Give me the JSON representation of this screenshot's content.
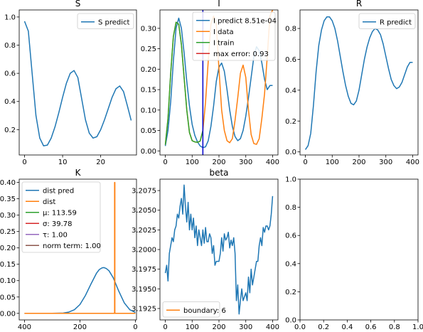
{
  "colors": {
    "blue": "#1f77b4",
    "orange": "#ff7f0e",
    "green": "#2ca02c",
    "red": "#d62728",
    "purple": "#9467bd",
    "brown": "#8c564b",
    "vline": "#0000cc"
  },
  "chart_data": [
    {
      "type": "line",
      "title": "S",
      "xlabel": "",
      "ylabel": "",
      "xlim": [
        -1.4,
        29.4
      ],
      "ylim": [
        0.02,
        1.05
      ],
      "xticks": [
        0,
        10,
        20
      ],
      "yticks": [
        0.2,
        0.4,
        0.6,
        0.8,
        1.0
      ],
      "xtick_labels": [
        "0",
        "10",
        "20"
      ],
      "ytick_labels": [
        "0.2",
        "0.4",
        "0.6",
        "0.8",
        "1.0"
      ],
      "legend_loc": "upper right",
      "series": [
        {
          "name": "S predict",
          "color": "blue",
          "x": [
            0,
            1,
            2,
            3,
            4,
            5,
            6,
            7,
            8,
            9,
            10,
            11,
            12,
            13,
            14,
            15,
            16,
            17,
            18,
            19,
            20,
            21,
            22,
            23,
            24,
            25,
            26,
            27,
            28
          ],
          "y": [
            0.97,
            0.9,
            0.6,
            0.3,
            0.14,
            0.085,
            0.09,
            0.14,
            0.22,
            0.32,
            0.43,
            0.53,
            0.6,
            0.62,
            0.57,
            0.42,
            0.27,
            0.175,
            0.14,
            0.15,
            0.2,
            0.27,
            0.35,
            0.43,
            0.49,
            0.51,
            0.47,
            0.37,
            0.265
          ]
        }
      ]
    },
    {
      "type": "line",
      "title": "I",
      "xlabel": "",
      "ylabel": "",
      "xlim": [
        -20,
        420
      ],
      "ylim": [
        -0.01,
        0.345
      ],
      "xticks": [
        0,
        100,
        200,
        300,
        400
      ],
      "yticks": [
        0.0,
        0.05,
        0.1,
        0.15,
        0.2,
        0.25,
        0.3
      ],
      "xtick_labels": [
        "0",
        "100",
        "200",
        "300",
        "400"
      ],
      "ytick_labels": [
        "0.00",
        "0.05",
        "0.10",
        "0.15",
        "0.20",
        "0.25",
        "0.30"
      ],
      "vline_x": 140,
      "legend_loc": "upper right",
      "series": [
        {
          "name": "I predict 8.51e-04",
          "color": "blue",
          "x": [
            0,
            10,
            20,
            30,
            40,
            50,
            60,
            70,
            80,
            90,
            100,
            110,
            120,
            130,
            140,
            150,
            160,
            170,
            180,
            190,
            200,
            210,
            220,
            230,
            240,
            250,
            260,
            270,
            280,
            290,
            300,
            310,
            320,
            330,
            340,
            350,
            360,
            370,
            380,
            390,
            400
          ],
          "y": [
            0.012,
            0.05,
            0.12,
            0.22,
            0.3,
            0.325,
            0.3,
            0.24,
            0.17,
            0.11,
            0.065,
            0.038,
            0.022,
            0.012,
            0.008,
            0.01,
            0.025,
            0.06,
            0.11,
            0.17,
            0.205,
            0.215,
            0.195,
            0.15,
            0.1,
            0.06,
            0.035,
            0.025,
            0.03,
            0.05,
            0.085,
            0.13,
            0.18,
            0.23,
            0.255,
            0.245,
            0.215,
            0.175,
            0.15,
            0.16,
            0.16
          ]
        },
        {
          "name": "I data",
          "color": "orange",
          "x": [
            0,
            10,
            20,
            30,
            40,
            50,
            60,
            70,
            80,
            90,
            100,
            110,
            120,
            130,
            140,
            150,
            160,
            170,
            180,
            190,
            200,
            210,
            220,
            230,
            240,
            250,
            260,
            270,
            280,
            290,
            300,
            310,
            320,
            330,
            340,
            350,
            360,
            370,
            380,
            390,
            400
          ],
          "y": [
            0.015,
            0.08,
            0.19,
            0.28,
            0.315,
            0.31,
            0.26,
            0.18,
            0.1,
            0.045,
            0.025,
            0.022,
            0.021,
            0.024,
            0.05,
            0.12,
            0.22,
            0.31,
            0.33,
            0.31,
            0.2,
            0.1,
            0.05,
            0.025,
            0.02,
            0.03,
            0.075,
            0.13,
            0.19,
            0.21,
            0.18,
            0.1,
            0.04,
            0.018,
            0.016,
            0.03,
            0.08,
            0.14,
            0.23,
            0.33,
            0.345
          ]
        },
        {
          "name": "I train",
          "color": "green",
          "x": [
            0,
            10,
            20,
            30,
            40,
            50,
            60,
            70,
            80,
            90,
            100,
            110,
            120,
            130,
            140
          ],
          "y": [
            0.015,
            0.08,
            0.19,
            0.28,
            0.315,
            0.31,
            0.26,
            0.18,
            0.1,
            0.045,
            0.025,
            0.022,
            0.021,
            0.024,
            0.05
          ]
        },
        {
          "name": "max error: 0.93",
          "color": "red",
          "x": [],
          "y": []
        }
      ]
    },
    {
      "type": "line",
      "title": "R",
      "xlabel": "",
      "ylabel": "",
      "xlim": [
        -20,
        420
      ],
      "ylim": [
        -0.02,
        0.92
      ],
      "xticks": [
        0,
        100,
        200,
        300,
        400
      ],
      "yticks": [
        0.0,
        0.2,
        0.4,
        0.6,
        0.8
      ],
      "xtick_labels": [
        "0",
        "100",
        "200",
        "300",
        "400"
      ],
      "ytick_labels": [
        "0.0",
        "0.2",
        "0.4",
        "0.6",
        "0.8"
      ],
      "legend_loc": "upper right",
      "series": [
        {
          "name": "R predict",
          "color": "blue",
          "x": [
            0,
            10,
            20,
            30,
            40,
            50,
            60,
            70,
            80,
            90,
            100,
            110,
            120,
            130,
            140,
            150,
            160,
            170,
            180,
            190,
            200,
            210,
            220,
            230,
            240,
            250,
            260,
            270,
            280,
            290,
            300,
            310,
            320,
            330,
            340,
            350,
            360,
            370,
            380,
            390,
            400
          ],
          "y": [
            0.015,
            0.04,
            0.12,
            0.3,
            0.52,
            0.69,
            0.79,
            0.85,
            0.875,
            0.875,
            0.85,
            0.8,
            0.72,
            0.62,
            0.52,
            0.43,
            0.36,
            0.315,
            0.305,
            0.33,
            0.4,
            0.5,
            0.6,
            0.68,
            0.74,
            0.78,
            0.8,
            0.79,
            0.76,
            0.7,
            0.62,
            0.54,
            0.47,
            0.43,
            0.41,
            0.42,
            0.45,
            0.5,
            0.55,
            0.58,
            0.58
          ]
        }
      ]
    },
    {
      "type": "line",
      "title": "K",
      "xlabel": "",
      "ylabel": "",
      "xlim": [
        419,
        -4
      ],
      "ylim": [
        -0.02,
        0.41
      ],
      "xticks": [
        400,
        200,
        0
      ],
      "yticks": [
        0.0,
        0.05,
        0.1,
        0.15,
        0.2,
        0.25,
        0.3,
        0.35,
        0.4
      ],
      "xtick_labels": [
        "400",
        "200",
        "0"
      ],
      "ytick_labels": [
        "0.00",
        "0.05",
        "0.10",
        "0.15",
        "0.20",
        "0.25",
        "0.30",
        "0.35",
        "0.40"
      ],
      "legend_loc": "upper left",
      "series": [
        {
          "name": "dist pred",
          "color": "blue",
          "x": [
            400,
            350,
            300,
            260,
            240,
            220,
            200,
            180,
            160,
            140,
            130,
            120,
            114,
            105,
            95,
            80,
            60,
            40,
            20,
            0
          ],
          "y": [
            0.0,
            0.0,
            0.0,
            0.001,
            0.004,
            0.011,
            0.027,
            0.055,
            0.09,
            0.123,
            0.134,
            0.139,
            0.14,
            0.137,
            0.13,
            0.109,
            0.068,
            0.032,
            0.011,
            0.003
          ]
        },
        {
          "name": "dist",
          "color": "orange",
          "x": [
            400,
            75,
            75,
            74,
            74,
            0
          ],
          "y": [
            0.0,
            0.0,
            0.4,
            0.4,
            0.0,
            0.0
          ]
        },
        {
          "name": "$\\mu$: 113.59",
          "color": "green",
          "x": [],
          "y": []
        },
        {
          "name": "$\\sigma$: 39.78",
          "color": "red",
          "x": [],
          "y": []
        },
        {
          "name": "$\\tau$: 1.00",
          "color": "purple",
          "x": [],
          "y": []
        },
        {
          "name": "norm term: 1.00",
          "color": "brown",
          "x": [],
          "y": []
        }
      ]
    },
    {
      "type": "line",
      "title": "beta",
      "xlabel": "",
      "ylabel": "",
      "xlim": [
        -20,
        420
      ],
      "ylim": [
        3.19105,
        3.20895
      ],
      "xticks": [
        0,
        100,
        200,
        300,
        400
      ],
      "yticks": [
        3.1925,
        3.195,
        3.1975,
        3.2,
        3.2025,
        3.205,
        3.2075
      ],
      "xtick_labels": [
        "0",
        "100",
        "200",
        "300",
        "400"
      ],
      "ytick_labels": [
        "3.1925",
        "3.1950",
        "3.1975",
        "3.2000",
        "3.2025",
        "3.2050",
        "3.2075"
      ],
      "legend_loc": "lower left",
      "series": [
        {
          "name": "beta",
          "color": "blue",
          "x": [
            0,
            5,
            10,
            15,
            20,
            25,
            30,
            35,
            40,
            45,
            50,
            55,
            60,
            65,
            70,
            75,
            80,
            85,
            90,
            95,
            100,
            105,
            110,
            115,
            120,
            125,
            130,
            135,
            140,
            145,
            150,
            155,
            160,
            165,
            170,
            175,
            180,
            185,
            190,
            195,
            200,
            205,
            210,
            215,
            220,
            225,
            230,
            235,
            240,
            245,
            250,
            255,
            260,
            265,
            270,
            275,
            280,
            285,
            290,
            295,
            300,
            305,
            310,
            315,
            320,
            325,
            330,
            335,
            340,
            345,
            350,
            355,
            360,
            365,
            370,
            375,
            380,
            385,
            390,
            395,
            400
          ],
          "y": [
            3.197,
            3.198,
            3.196,
            3.1995,
            3.2005,
            3.2015,
            3.201,
            3.2025,
            3.203,
            3.2045,
            3.204,
            3.2055,
            3.2065,
            3.2045,
            3.2082,
            3.2055,
            3.2035,
            3.206,
            3.2025,
            3.2045,
            3.2025,
            3.204,
            3.2015,
            3.203,
            3.2005,
            3.2025,
            3.2015,
            3.2005,
            3.2025,
            3.2008,
            3.2028,
            3.201,
            3.201,
            3.202,
            3.2015,
            3.1995,
            3.2005,
            3.198,
            3.1985,
            3.1985,
            3.1985,
            3.1995,
            3.2015,
            3.1998,
            3.202,
            3.2012,
            3.2015,
            3.2022,
            3.2002,
            3.2012,
            3.2005,
            3.2015,
            3.1995,
            3.1935,
            3.1955,
            3.1918,
            3.1935,
            3.195,
            3.1935,
            3.194,
            3.1945,
            3.1935,
            3.1965,
            3.1945,
            3.1975,
            3.1955,
            3.1965,
            3.1975,
            3.1985,
            3.1985,
            3.2005,
            3.2015,
            3.2005,
            3.2028,
            3.2022,
            3.203,
            3.203,
            3.2025,
            3.203,
            3.2045,
            3.2068
          ]
        },
        {
          "name": "boundary: 6",
          "color": "orange",
          "x": [],
          "y": []
        }
      ]
    },
    {
      "type": "line",
      "title": "",
      "xlabel": "",
      "ylabel": "",
      "xlim": [
        0,
        1
      ],
      "ylim": [
        0,
        1
      ],
      "xticks": [
        0,
        0.2,
        0.4,
        0.6,
        0.8,
        1.0
      ],
      "yticks": [
        0,
        0.2,
        0.4,
        0.6,
        0.8,
        1.0
      ],
      "xtick_labels": [
        "0.0",
        "0.2",
        "0.4",
        "0.6",
        "0.8",
        "1.0"
      ],
      "ytick_labels": [
        "0.0",
        "0.2",
        "0.4",
        "0.6",
        "0.8",
        "1.0"
      ],
      "legend_loc": "",
      "series": []
    }
  ]
}
